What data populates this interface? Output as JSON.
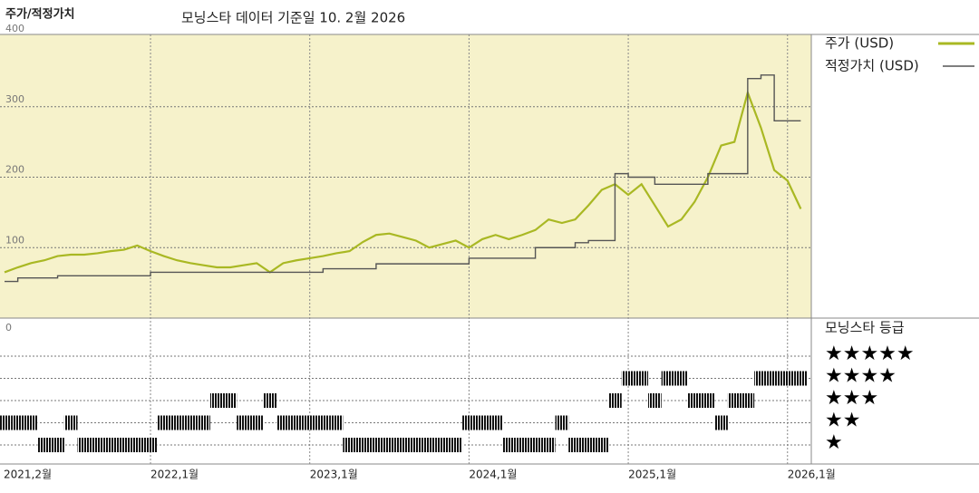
{
  "chart_data": {
    "type": "line",
    "title": "주가/적정가치",
    "subtitle": "모닝스타 데이터 기준일 10. 2월 2026",
    "x": [
      "2021-02",
      "2021-03",
      "2021-04",
      "2021-05",
      "2021-06",
      "2021-07",
      "2021-08",
      "2021-09",
      "2021-10",
      "2021-11",
      "2021-12",
      "2022-01",
      "2022-02",
      "2022-03",
      "2022-04",
      "2022-05",
      "2022-06",
      "2022-07",
      "2022-08",
      "2022-09",
      "2022-10",
      "2022-11",
      "2022-12",
      "2023-01",
      "2023-02",
      "2023-03",
      "2023-04",
      "2023-05",
      "2023-06",
      "2023-07",
      "2023-08",
      "2023-09",
      "2023-10",
      "2023-11",
      "2023-12",
      "2024-01",
      "2024-02",
      "2024-03",
      "2024-04",
      "2024-05",
      "2024-06",
      "2024-07",
      "2024-08",
      "2024-09",
      "2024-10",
      "2024-11",
      "2024-12",
      "2025-01",
      "2025-02",
      "2025-03",
      "2025-04",
      "2025-05",
      "2025-06",
      "2025-07",
      "2025-08",
      "2025-09",
      "2025-10",
      "2025-11",
      "2025-12",
      "2026-01",
      "2026-02"
    ],
    "xticks": [
      {
        "value": "2021-02",
        "label": "2021,2월"
      },
      {
        "value": "2022-01",
        "label": "2022,1월"
      },
      {
        "value": "2023-01",
        "label": "2023,1월"
      },
      {
        "value": "2024-01",
        "label": "2024,1월"
      },
      {
        "value": "2025-01",
        "label": "2025,1월"
      },
      {
        "value": "2026-01",
        "label": "2026,1월"
      }
    ],
    "ylim": [
      0,
      400
    ],
    "yticks": [
      0,
      100,
      200,
      300,
      400
    ],
    "grid": true,
    "series": [
      {
        "name": "주가 (USD)",
        "color": "#a9b823",
        "step": false,
        "values": [
          65,
          72,
          78,
          82,
          88,
          90,
          90,
          92,
          95,
          97,
          103,
          95,
          88,
          82,
          78,
          75,
          72,
          72,
          75,
          78,
          65,
          78,
          82,
          85,
          88,
          92,
          95,
          108,
          118,
          120,
          115,
          110,
          100,
          105,
          110,
          100,
          112,
          118,
          112,
          118,
          125,
          140,
          135,
          140,
          160,
          182,
          190,
          175,
          190,
          160,
          130,
          140,
          165,
          200,
          245,
          250,
          320,
          270,
          210,
          195,
          155
        ]
      },
      {
        "name": "적정가치 (USD)",
        "color": "#555555",
        "step": true,
        "values": [
          52,
          57,
          57,
          57,
          60,
          60,
          60,
          60,
          60,
          60,
          60,
          65,
          65,
          65,
          65,
          65,
          65,
          65,
          65,
          65,
          65,
          65,
          65,
          65,
          70,
          70,
          70,
          70,
          77,
          77,
          77,
          77,
          77,
          77,
          77,
          85,
          85,
          85,
          85,
          85,
          100,
          100,
          100,
          107,
          110,
          110,
          205,
          200,
          200,
          190,
          190,
          190,
          190,
          205,
          205,
          205,
          340,
          345,
          280,
          280,
          280
        ]
      }
    ],
    "rating_title": "모닝스타 등급",
    "rating_labels": [
      "★",
      "★★",
      "★★★",
      "★★★★",
      "★★★★★"
    ],
    "ratings": [
      2,
      2,
      2,
      1,
      1,
      2,
      1,
      1,
      1,
      1,
      1,
      1,
      2,
      2,
      2,
      2,
      3,
      3,
      2,
      2,
      3,
      2,
      2,
      2,
      2,
      2,
      1,
      1,
      1,
      1,
      1,
      1,
      1,
      1,
      1,
      2,
      2,
      2,
      1,
      1,
      1,
      1,
      2,
      1,
      1,
      1,
      3,
      4,
      4,
      3,
      4,
      4,
      3,
      3,
      2,
      3,
      3,
      4,
      4,
      4,
      4
    ]
  }
}
